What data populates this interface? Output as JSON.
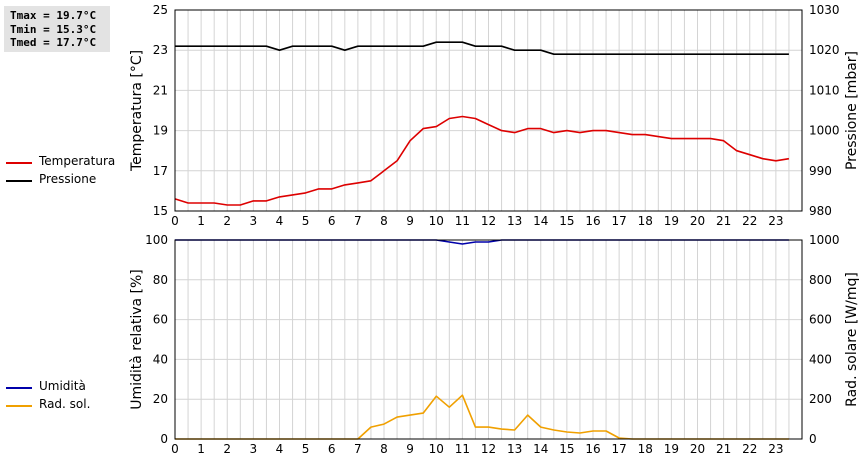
{
  "stats": {
    "tmax": "Tmax = 19.7°C",
    "tmin": "Tmin = 15.3°C",
    "tmed": "Tmed = 17.7°C"
  },
  "legend_top": [
    {
      "label": "Temperatura",
      "color": "#dd0000"
    },
    {
      "label": "Pressione",
      "color": "#000000"
    }
  ],
  "legend_bottom": [
    {
      "label": "Umidità",
      "color": "#0000aa"
    },
    {
      "label": "Rad. sol.",
      "color": "#f0a000"
    }
  ],
  "chart_data": [
    {
      "type": "line",
      "x_ticks": [
        "0",
        "1",
        "2",
        "3",
        "4",
        "5",
        "6",
        "7",
        "8",
        "9",
        "10",
        "11",
        "12",
        "13",
        "14",
        "15",
        "16",
        "17",
        "18",
        "19",
        "20",
        "21",
        "22",
        "23"
      ],
      "ylabel": "Temperatura [°C]",
      "ylim": [
        15,
        25
      ],
      "y_ticks": [
        "15",
        "17",
        "19",
        "21",
        "23",
        "25"
      ],
      "y2label": "Pressione [mbar]",
      "y2lim": [
        980,
        1030
      ],
      "y2_ticks": [
        "980",
        "990",
        "1000",
        "1010",
        "1020",
        "1030"
      ],
      "grid": true,
      "series": [
        {
          "name": "Temperatura",
          "axis": "left",
          "color": "#dd0000",
          "x": [
            0,
            0.5,
            1,
            1.5,
            2,
            2.5,
            3,
            3.5,
            4,
            4.5,
            5,
            5.5,
            6,
            6.5,
            7,
            7.5,
            8,
            8.5,
            9,
            9.5,
            10,
            10.5,
            11,
            11.5,
            12,
            12.5,
            13,
            13.5,
            14,
            14.5,
            15,
            15.5,
            16,
            16.5,
            17,
            17.5,
            18,
            18.5,
            19,
            19.5,
            20,
            20.5,
            21,
            21.5,
            22,
            22.5,
            23,
            23.5
          ],
          "y": [
            15.6,
            15.4,
            15.4,
            15.4,
            15.3,
            15.3,
            15.5,
            15.5,
            15.7,
            15.8,
            15.9,
            16.1,
            16.1,
            16.3,
            16.4,
            16.5,
            17.0,
            17.5,
            18.5,
            19.1,
            19.2,
            19.6,
            19.7,
            19.6,
            19.3,
            19.0,
            18.9,
            19.1,
            19.1,
            18.9,
            19.0,
            18.9,
            19.0,
            19.0,
            18.9,
            18.8,
            18.8,
            18.7,
            18.6,
            18.6,
            18.6,
            18.6,
            18.5,
            18.0,
            17.8,
            17.6,
            17.5,
            17.6
          ]
        },
        {
          "name": "Pressione",
          "axis": "right",
          "color": "#000000",
          "x": [
            0,
            0.5,
            1,
            1.5,
            2,
            2.5,
            3,
            3.5,
            4,
            4.5,
            5,
            5.5,
            6,
            6.5,
            7,
            7.5,
            8,
            8.5,
            9,
            9.5,
            10,
            10.5,
            11,
            11.5,
            12,
            12.5,
            13,
            13.5,
            14,
            14.5,
            15,
            15.5,
            16,
            16.5,
            17,
            17.5,
            18,
            18.5,
            19,
            19.5,
            20,
            20.5,
            21,
            21.5,
            22,
            22.5,
            23,
            23.5
          ],
          "y": [
            1021,
            1021,
            1021,
            1021,
            1021,
            1021,
            1021,
            1021,
            1020,
            1021,
            1021,
            1021,
            1021,
            1020,
            1021,
            1021,
            1021,
            1021,
            1021,
            1021,
            1022,
            1022,
            1022,
            1021,
            1021,
            1021,
            1020,
            1020,
            1020,
            1019,
            1019,
            1019,
            1019,
            1019,
            1019,
            1019,
            1019,
            1019,
            1019,
            1019,
            1019,
            1019,
            1019,
            1019,
            1019,
            1019,
            1019,
            1019
          ]
        }
      ]
    },
    {
      "type": "line",
      "x_ticks": [
        "0",
        "1",
        "2",
        "3",
        "4",
        "5",
        "6",
        "7",
        "8",
        "9",
        "10",
        "11",
        "12",
        "13",
        "14",
        "15",
        "16",
        "17",
        "18",
        "19",
        "20",
        "21",
        "22",
        "23"
      ],
      "ylabel": "Umidità relativa [%]",
      "ylim": [
        0,
        100
      ],
      "y_ticks": [
        "0",
        "20",
        "40",
        "60",
        "80",
        "100"
      ],
      "y2label": "Rad. solare [W/mq]",
      "y2lim": [
        0,
        1000
      ],
      "y2_ticks": [
        "0",
        "200",
        "400",
        "600",
        "800",
        "1000"
      ],
      "grid": true,
      "series": [
        {
          "name": "Umidità",
          "axis": "left",
          "color": "#0000aa",
          "x": [
            0,
            1,
            2,
            3,
            4,
            5,
            6,
            7,
            8,
            9,
            10,
            10.5,
            11,
            11.5,
            12,
            12.5,
            13,
            14,
            15,
            16,
            17,
            18,
            19,
            20,
            21,
            22,
            23,
            23.5
          ],
          "y": [
            100,
            100,
            100,
            100,
            100,
            100,
            100,
            100,
            100,
            100,
            100,
            99,
            98,
            99,
            99,
            100,
            100,
            100,
            100,
            100,
            100,
            100,
            100,
            100,
            100,
            100,
            100,
            100
          ]
        },
        {
          "name": "Rad. sol.",
          "axis": "right",
          "color": "#f0a000",
          "x": [
            0,
            1,
            2,
            3,
            4,
            5,
            6,
            7,
            7.5,
            8,
            8.5,
            9,
            9.5,
            10,
            10.5,
            11,
            11.5,
            12,
            12.5,
            13,
            13.5,
            14,
            14.5,
            15,
            15.5,
            16,
            16.5,
            17,
            17.5,
            18,
            19,
            20,
            21,
            22,
            23,
            23.5
          ],
          "y": [
            0,
            0,
            0,
            0,
            0,
            0,
            0,
            0,
            60,
            75,
            110,
            120,
            130,
            215,
            160,
            220,
            60,
            60,
            50,
            45,
            120,
            60,
            45,
            35,
            30,
            40,
            40,
            5,
            0,
            0,
            0,
            0,
            0,
            0,
            0,
            0
          ]
        }
      ]
    }
  ]
}
